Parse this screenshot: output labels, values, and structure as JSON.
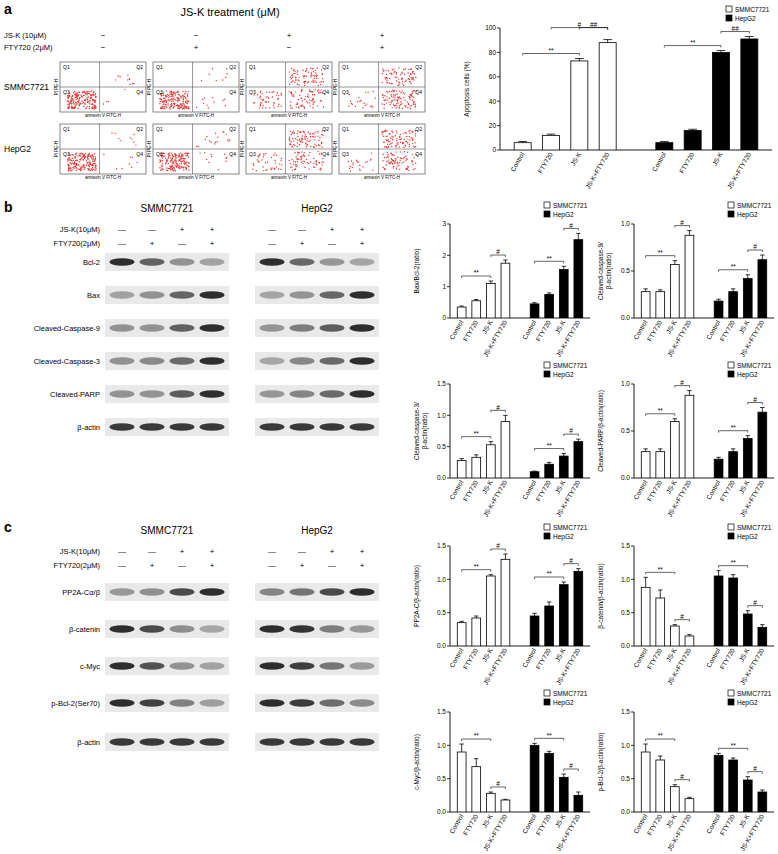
{
  "chart_data": [
    {
      "type": "bar",
      "y_label": [
        "Apoptosis cells (%)"
      ],
      "categories": [
        "Control",
        "FTY720",
        "JS-K",
        "JS-K+FTY720",
        "Control",
        "FTY720",
        "JS-K",
        "JS-K+FTY720"
      ],
      "series": [
        {
          "name": "SMMC7721",
          "color": "#ffffff",
          "values": [
            6,
            12,
            73,
            88,
            null,
            null,
            null,
            null
          ],
          "errors": [
            1,
            1,
            2,
            2.5,
            null,
            null,
            null,
            null
          ]
        },
        {
          "name": "HepG2",
          "color": "#000000",
          "values": [
            null,
            null,
            null,
            null,
            6,
            16,
            80,
            91
          ],
          "errors": [
            null,
            null,
            null,
            null,
            1,
            1,
            1.5,
            2
          ]
        }
      ],
      "ylim": [
        0,
        100
      ],
      "yticks": [
        0,
        20,
        40,
        60,
        80,
        100
      ],
      "legend": "upper right",
      "annotations": [
        {
          "text": "**",
          "from": 0,
          "to": 2
        },
        {
          "text": "#",
          "from": 1,
          "to": 3
        },
        {
          "text": "##",
          "from": 2,
          "to": 3
        },
        {
          "text": "**",
          "from": 4,
          "to": 6
        },
        {
          "text": "##",
          "from": 6,
          "to": 7
        }
      ]
    },
    {
      "type": "bar",
      "y_label": [
        "Bax/Bcl-2(ratio)"
      ],
      "categories": [
        "Control",
        "FTY720",
        "JS-K",
        "JS-K+FTY720",
        "Control",
        "FTY720",
        "JS-K",
        "JS-K+FTY720"
      ],
      "series": [
        {
          "name": "SMMC7721",
          "color": "#ffffff",
          "values": [
            0.35,
            0.55,
            1.1,
            1.75,
            null,
            null,
            null,
            null
          ],
          "errors": [
            0.03,
            0.04,
            0.08,
            0.1,
            null,
            null,
            null,
            null
          ]
        },
        {
          "name": "HepG2",
          "color": "#000000",
          "values": [
            null,
            null,
            null,
            null,
            0.45,
            0.75,
            1.55,
            2.5
          ],
          "errors": [
            null,
            null,
            null,
            null,
            0.04,
            0.05,
            0.1,
            0.2
          ]
        }
      ],
      "ylim": [
        0,
        3
      ],
      "yticks": [
        0,
        1,
        2,
        3
      ],
      "legend": "upper right",
      "annotations": [
        {
          "text": "**",
          "from": 0,
          "to": 2
        },
        {
          "text": "#",
          "from": 2,
          "to": 3
        },
        {
          "text": "**",
          "from": 4,
          "to": 6
        },
        {
          "text": "#",
          "from": 6,
          "to": 7
        }
      ]
    },
    {
      "type": "bar",
      "y_label": [
        "Cleaved-caspase-9/",
        "β-actin(ratio)"
      ],
      "categories": [
        "Control",
        "FTY720",
        "JS-K",
        "JS-K+FTY720",
        "Control",
        "FTY720",
        "JS-K",
        "JS-K+FTY720"
      ],
      "series": [
        {
          "name": "SMMC7721",
          "color": "#ffffff",
          "values": [
            0.28,
            0.28,
            0.57,
            0.88,
            null,
            null,
            null,
            null
          ],
          "errors": [
            0.03,
            0.02,
            0.04,
            0.05,
            null,
            null,
            null,
            null
          ]
        },
        {
          "name": "HepG2",
          "color": "#000000",
          "values": [
            null,
            null,
            null,
            null,
            0.18,
            0.28,
            0.42,
            0.62
          ],
          "errors": [
            null,
            null,
            null,
            null,
            0.02,
            0.03,
            0.04,
            0.05
          ]
        }
      ],
      "ylim": [
        0,
        1
      ],
      "yticks": [
        {
          "value": 0,
          "label": "0.0"
        },
        0.5,
        {
          "value": 1,
          "label": "1.0"
        }
      ],
      "legend": "upper right",
      "annotations": [
        {
          "text": "**",
          "from": 0,
          "to": 2
        },
        {
          "text": "#",
          "from": 2,
          "to": 3
        },
        {
          "text": "**",
          "from": 4,
          "to": 6
        },
        {
          "text": "#",
          "from": 6,
          "to": 7
        }
      ]
    },
    {
      "type": "bar",
      "y_label": [
        "Cleaved-caspase-3/",
        "β-actin(ratio)"
      ],
      "categories": [
        "Control",
        "FTY720",
        "JS-K",
        "JS-K+FTY720",
        "Control",
        "FTY720",
        "JS-K",
        "JS-K+FTY720"
      ],
      "series": [
        {
          "name": "SMMC7721",
          "color": "#ffffff",
          "values": [
            0.28,
            0.33,
            0.53,
            0.9,
            null,
            null,
            null,
            null
          ],
          "errors": [
            0.03,
            0.04,
            0.05,
            0.1,
            null,
            null,
            null,
            null
          ]
        },
        {
          "name": "HepG2",
          "color": "#000000",
          "values": [
            null,
            null,
            null,
            null,
            0.1,
            0.22,
            0.35,
            0.58
          ],
          "errors": [
            null,
            null,
            null,
            null,
            0.01,
            0.03,
            0.04,
            0.04
          ]
        }
      ],
      "ylim": [
        0,
        1.5
      ],
      "yticks": [
        {
          "value": 0,
          "label": "0.0"
        },
        0.5,
        {
          "value": 1,
          "label": "1.0"
        },
        1.5
      ],
      "legend": "upper right",
      "annotations": [
        {
          "text": "**",
          "from": 0,
          "to": 2
        },
        {
          "text": "#",
          "from": 2,
          "to": 3
        },
        {
          "text": "**",
          "from": 4,
          "to": 6
        },
        {
          "text": "#",
          "from": 6,
          "to": 7
        }
      ]
    },
    {
      "type": "bar",
      "y_label": [
        "Cleaved-PARP/β-actin(ratio)"
      ],
      "categories": [
        "Control",
        "FTY720",
        "JS-K",
        "JS-K+FTY720",
        "Control",
        "FTY720",
        "JS-K",
        "JS-K+FTY720"
      ],
      "series": [
        {
          "name": "SMMC7721",
          "color": "#ffffff",
          "values": [
            0.28,
            0.28,
            0.6,
            0.88,
            null,
            null,
            null,
            null
          ],
          "errors": [
            0.03,
            0.03,
            0.03,
            0.05,
            null,
            null,
            null,
            null
          ]
        },
        {
          "name": "HepG2",
          "color": "#000000",
          "values": [
            null,
            null,
            null,
            null,
            0.2,
            0.28,
            0.42,
            0.7
          ],
          "errors": [
            null,
            null,
            null,
            null,
            0.02,
            0.03,
            0.03,
            0.05
          ]
        }
      ],
      "ylim": [
        0,
        1
      ],
      "yticks": [
        {
          "value": 0,
          "label": "0.0"
        },
        0.5,
        {
          "value": 1,
          "label": "1.0"
        }
      ],
      "legend": "upper right",
      "annotations": [
        {
          "text": "**",
          "from": 0,
          "to": 2
        },
        {
          "text": "#",
          "from": 2,
          "to": 3
        },
        {
          "text": "**",
          "from": 4,
          "to": 6
        },
        {
          "text": "#",
          "from": 6,
          "to": 7
        }
      ]
    },
    {
      "type": "bar",
      "y_label": [
        "PP2A-C/β-actin(ratio)"
      ],
      "categories": [
        "Control",
        "FTY720",
        "JS-K",
        "JS-K+FTY720",
        "Control",
        "FTY720",
        "JS-K",
        "JS-K+FTY720"
      ],
      "series": [
        {
          "name": "SMMC7721",
          "color": "#ffffff",
          "values": [
            0.35,
            0.42,
            1.05,
            1.3,
            null,
            null,
            null,
            null
          ],
          "errors": [
            0.02,
            0.03,
            0.02,
            0.08,
            null,
            null,
            null,
            null
          ]
        },
        {
          "name": "HepG2",
          "color": "#000000",
          "values": [
            null,
            null,
            null,
            null,
            0.45,
            0.6,
            0.92,
            1.12
          ],
          "errors": [
            null,
            null,
            null,
            null,
            0.04,
            0.06,
            0.04,
            0.04
          ]
        }
      ],
      "ylim": [
        0,
        1.5
      ],
      "yticks": [
        {
          "value": 0,
          "label": "0.0"
        },
        0.5,
        {
          "value": 1,
          "label": "1.0"
        },
        1.5
      ],
      "legend": "upper right",
      "annotations": [
        {
          "text": "**",
          "from": 0,
          "to": 2
        },
        {
          "text": "#",
          "from": 2,
          "to": 3
        },
        {
          "text": "**",
          "from": 4,
          "to": 6
        },
        {
          "text": "#",
          "from": 6,
          "to": 7
        }
      ]
    },
    {
      "type": "bar",
      "y_label": [
        "β-catenin/β-actin(ratio)"
      ],
      "categories": [
        "Control",
        "FTY720",
        "JS-K",
        "JS-K+FTY720",
        "Control",
        "FTY720",
        "JS-K",
        "JS-K+FTY720"
      ],
      "series": [
        {
          "name": "SMMC7721",
          "color": "#ffffff",
          "values": [
            0.88,
            0.72,
            0.3,
            0.15,
            null,
            null,
            null,
            null
          ],
          "errors": [
            0.15,
            0.12,
            0.02,
            0.02,
            null,
            null,
            null,
            null
          ]
        },
        {
          "name": "HepG2",
          "color": "#000000",
          "values": [
            null,
            null,
            null,
            null,
            1.05,
            1.02,
            0.48,
            0.28
          ],
          "errors": [
            null,
            null,
            null,
            null,
            0.08,
            0.05,
            0.05,
            0.04
          ]
        }
      ],
      "ylim": [
        0,
        1.5
      ],
      "yticks": [
        {
          "value": 0,
          "label": "0.0"
        },
        0.5,
        {
          "value": 1,
          "label": "1.0"
        },
        1.5
      ],
      "legend": "upper right",
      "annotations": [
        {
          "text": "**",
          "from": 0,
          "to": 2
        },
        {
          "text": "#",
          "from": 2,
          "to": 3
        },
        {
          "text": "**",
          "from": 4,
          "to": 6
        },
        {
          "text": "#",
          "from": 6,
          "to": 7
        }
      ]
    },
    {
      "type": "bar",
      "y_label": [
        "c-Myc/β-actin(ratio)"
      ],
      "categories": [
        "Control",
        "FTY720",
        "JS-K",
        "JS-K+FTY720",
        "Control",
        "FTY720",
        "JS-K",
        "JS-K+FTY720"
      ],
      "series": [
        {
          "name": "SMMC7721",
          "color": "#ffffff",
          "values": [
            0.9,
            0.68,
            0.28,
            0.18,
            null,
            null,
            null,
            null
          ],
          "errors": [
            0.12,
            0.12,
            0.02,
            0.01,
            null,
            null,
            null,
            null
          ]
        },
        {
          "name": "HepG2",
          "color": "#000000",
          "values": [
            null,
            null,
            null,
            null,
            1.0,
            0.88,
            0.52,
            0.25
          ],
          "errors": [
            null,
            null,
            null,
            null,
            0.03,
            0.03,
            0.05,
            0.05
          ]
        }
      ],
      "ylim": [
        0,
        1.5
      ],
      "yticks": [
        {
          "value": 0,
          "label": "0.0"
        },
        0.5,
        {
          "value": 1,
          "label": "1.0"
        },
        1.5
      ],
      "legend": "upper right",
      "annotations": [
        {
          "text": "**",
          "from": 0,
          "to": 2
        },
        {
          "text": "#",
          "from": 2,
          "to": 3
        },
        {
          "text": "**",
          "from": 4,
          "to": 6
        },
        {
          "text": "#",
          "from": 6,
          "to": 7
        }
      ]
    },
    {
      "type": "bar",
      "y_label": [
        "p-Bcl-2/β-actin(ratio)"
      ],
      "categories": [
        "Control",
        "FTY720",
        "JS-K",
        "JS-K+FTY720",
        "Control",
        "FTY720",
        "JS-K",
        "JS-K+FTY720"
      ],
      "series": [
        {
          "name": "SMMC7721",
          "color": "#ffffff",
          "values": [
            0.9,
            0.78,
            0.38,
            0.2,
            null,
            null,
            null,
            null
          ],
          "errors": [
            0.12,
            0.06,
            0.03,
            0.02,
            null,
            null,
            null,
            null
          ]
        },
        {
          "name": "HepG2",
          "color": "#000000",
          "values": [
            null,
            null,
            null,
            null,
            0.85,
            0.78,
            0.48,
            0.3
          ],
          "errors": [
            null,
            null,
            null,
            null,
            0.03,
            0.03,
            0.05,
            0.03
          ]
        }
      ],
      "ylim": [
        0,
        1.5
      ],
      "yticks": [
        {
          "value": 0,
          "label": "0.0"
        },
        0.5,
        {
          "value": 1,
          "label": "1.0"
        },
        1.5
      ],
      "legend": "upper right",
      "annotations": [
        {
          "text": "**",
          "from": 0,
          "to": 2
        },
        {
          "text": "#",
          "from": 2,
          "to": 3
        },
        {
          "text": "**",
          "from": 4,
          "to": 6
        },
        {
          "text": "#",
          "from": 6,
          "to": 7
        }
      ]
    }
  ],
  "figure": {
    "a": {
      "letter": "a",
      "title": "JS-K treatment (μM)",
      "treatments": [
        {
          "label": "JS-K (10μM)",
          "signs": [
            "−",
            "−",
            "+",
            "+"
          ]
        },
        {
          "label": "FTY720 (2μM)",
          "signs": [
            "−",
            "+",
            "−",
            "+"
          ]
        }
      ],
      "rows": [
        "SMMC7721",
        "HepG2"
      ],
      "quadrants": [
        "Q1",
        "Q2",
        "Q3",
        "Q4"
      ],
      "flow_x_label": "annexin V FITC-H",
      "flow_y_label": "PI PE-H"
    },
    "b": {
      "letter": "b",
      "cell_lines": [
        "SMMC7721",
        "HepG2"
      ],
      "treatments": [
        {
          "label": "JS-K(10μM)",
          "signs": [
            "—",
            "—",
            "+",
            "+"
          ]
        },
        {
          "label": "FTY720(2μM)",
          "signs": [
            "—",
            "+",
            "—",
            "+"
          ]
        }
      ],
      "blots": [
        "Bcl-2",
        "Bax",
        "Cleaved-Caspase-9",
        "Cleaved-Caspase-3",
        "Cleaved-PARP",
        "β-actin"
      ]
    },
    "c": {
      "letter": "c",
      "cell_lines": [
        "SMMC7721",
        "HepG2"
      ],
      "treatments": [
        {
          "label": "JS-K(10μM)",
          "signs": [
            "—",
            "—",
            "+",
            "+"
          ]
        },
        {
          "label": "FTY720(2μM)",
          "signs": [
            "—",
            "+",
            "—",
            "+"
          ]
        }
      ],
      "blots": [
        "PP2A-Cα/β",
        "β-catenin",
        "c-Myc",
        "p-Bcl-2(Ser70)",
        "β-actin"
      ]
    }
  }
}
